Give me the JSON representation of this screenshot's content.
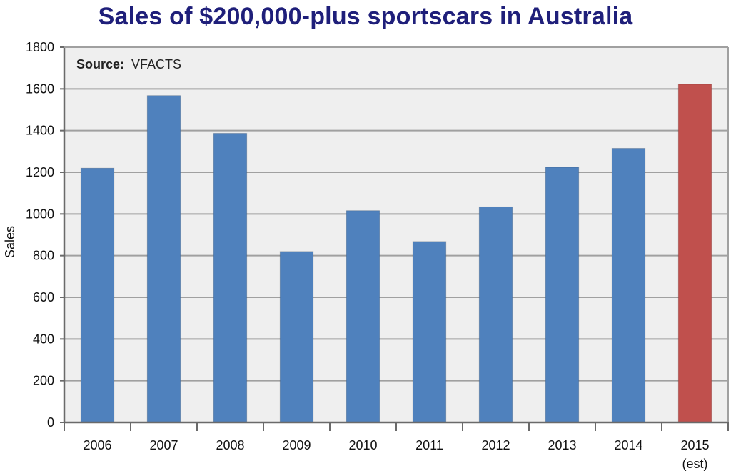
{
  "chart_data": {
    "type": "bar",
    "title": "Sales of $200,000-plus sportscars in Australia",
    "source_label": "Source:",
    "source_value": "VFACTS",
    "xlabel": "",
    "ylabel": "Sales",
    "ylim": [
      0,
      1800
    ],
    "yticks": [
      0,
      200,
      400,
      600,
      800,
      1000,
      1200,
      1400,
      1600,
      1800
    ],
    "grid": true,
    "categories": [
      "2006",
      "2007",
      "2008",
      "2009",
      "2010",
      "2011",
      "2012",
      "2013",
      "2014",
      "2015"
    ],
    "category_sublabels": [
      "",
      "",
      "",
      "",
      "",
      "",
      "",
      "",
      "",
      "(est)"
    ],
    "values": [
      1220,
      1568,
      1387,
      820,
      1016,
      868,
      1034,
      1224,
      1315,
      1622
    ],
    "bar_colors": [
      "#4f81bd",
      "#4f81bd",
      "#4f81bd",
      "#4f81bd",
      "#4f81bd",
      "#4f81bd",
      "#4f81bd",
      "#4f81bd",
      "#4f81bd",
      "#c0504d"
    ]
  },
  "colors": {
    "title": "#1f1f7a",
    "plot_background": "#efefef",
    "gridline": "#a0a0a0",
    "axis": "#6a6a6a"
  }
}
